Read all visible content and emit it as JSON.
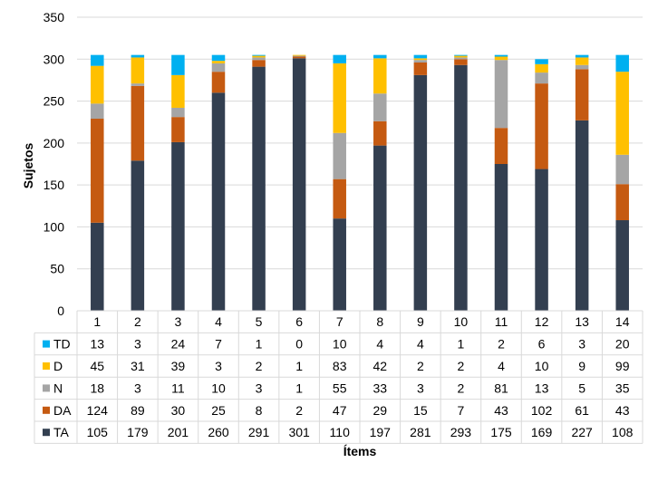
{
  "chart_data": {
    "type": "bar",
    "stacked": true,
    "categories": [
      "1",
      "2",
      "3",
      "4",
      "5",
      "6",
      "7",
      "8",
      "9",
      "10",
      "11",
      "12",
      "13",
      "14"
    ],
    "series": [
      {
        "name": "TA",
        "color": "#333f50",
        "values": [
          105,
          179,
          201,
          260,
          291,
          301,
          110,
          197,
          281,
          293,
          175,
          169,
          227,
          108
        ]
      },
      {
        "name": "DA",
        "color": "#c55a11",
        "values": [
          124,
          89,
          30,
          25,
          8,
          2,
          47,
          29,
          15,
          7,
          43,
          102,
          61,
          43
        ]
      },
      {
        "name": "N",
        "color": "#a5a5a5",
        "values": [
          18,
          3,
          11,
          10,
          3,
          1,
          55,
          33,
          3,
          2,
          81,
          13,
          5,
          35
        ]
      },
      {
        "name": "D",
        "color": "#ffc000",
        "values": [
          45,
          31,
          39,
          3,
          2,
          1,
          83,
          42,
          2,
          2,
          4,
          10,
          9,
          99
        ]
      },
      {
        "name": "TD",
        "color": "#00b0f0",
        "values": [
          13,
          3,
          24,
          7,
          1,
          0,
          10,
          4,
          4,
          1,
          2,
          6,
          3,
          20
        ]
      }
    ],
    "table_order": [
      "TD",
      "D",
      "N",
      "DA",
      "TA"
    ],
    "ylabel": "Sujetos",
    "xlabel": "Ítems",
    "ylim": [
      0,
      350
    ],
    "yticks": [
      0,
      50,
      100,
      150,
      200,
      250,
      300,
      350
    ],
    "grid": true,
    "legend": "data-table"
  }
}
